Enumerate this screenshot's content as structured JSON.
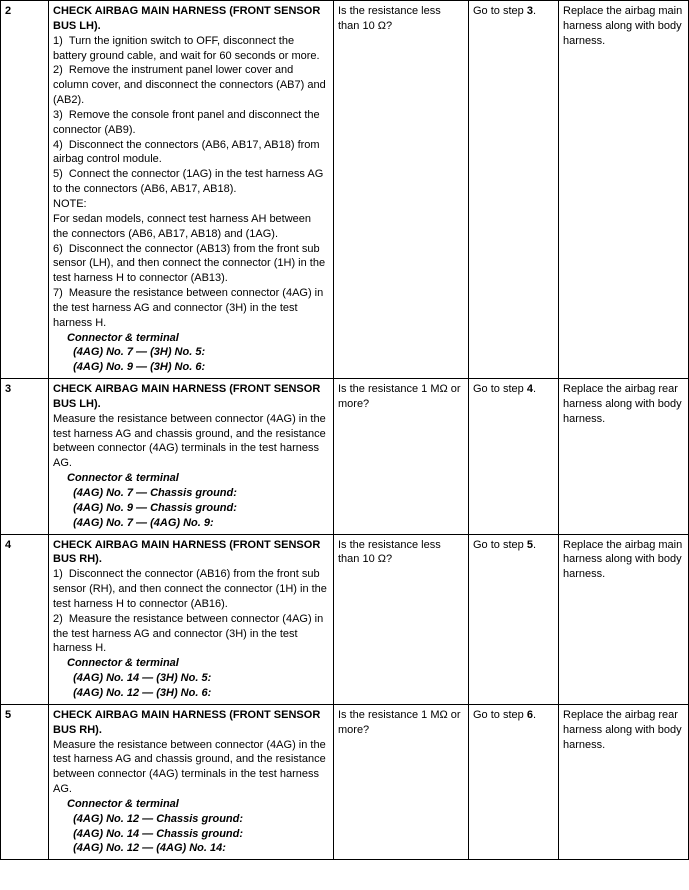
{
  "rows": [
    {
      "step": "2",
      "title": "CHECK AIRBAG MAIN HARNESS (FRONT SENSOR BUS LH).",
      "body_html": "1)&nbsp;&nbsp;Turn the ignition switch to OFF, disconnect the battery ground cable, and wait for 60 seconds or more.<br>2)&nbsp;&nbsp;Remove the instrument panel lower cover and column cover, and disconnect the connectors (AB7) and (AB2).<br>3)&nbsp;&nbsp;Remove the console front panel and disconnect the connector (AB9).<br>4)&nbsp;&nbsp;Disconnect the connectors (AB6, AB17, AB18) from airbag control module.<br>5)&nbsp;&nbsp;Connect the connector (1AG) in the test harness AG to the connectors (AB6, AB17, AB18).<br>NOTE:<br>For sedan models, connect test harness AH between the connectors (AB6, AB17, AB18) and (1AG).<br>6)&nbsp;&nbsp;Disconnect the connector (AB13) from the front sub sensor (LH), and then connect the connector (1H) in the test harness H to connector (AB13).<br>7)&nbsp;&nbsp;Measure the resistance between connector (4AG) in the test harness AG and connector (3H) in the test harness H.<br><span class=\"indent1\"><span class=\"bold\">Connector &amp; terminal</span></span><span class=\"indent1\"><span class=\"bold\">&nbsp;&nbsp;(4AG) No. 7 — (3H) No. 5:</span></span><span class=\"indent1\"><span class=\"bold\">&nbsp;&nbsp;(4AG) No. 9 — (3H) No. 6:</span></span>",
      "check": "Is the resistance less than 10 Ω?",
      "yes_html": "Go to step <b>3</b>.",
      "no": "Replace the airbag main harness along with body harness."
    },
    {
      "step": "3",
      "title": "CHECK AIRBAG MAIN HARNESS (FRONT SENSOR BUS LH).",
      "body_html": "Measure the resistance between connector (4AG) in the test harness AG and chassis ground, and the resistance between connector (4AG) terminals in the test harness AG.<br><span class=\"indent1\"><span class=\"bold\">Connector &amp; terminal</span></span><span class=\"indent1\"><span class=\"bold\">&nbsp;&nbsp;(4AG) No. 7 — Chassis ground:</span></span><span class=\"indent1\"><span class=\"bold\">&nbsp;&nbsp;(4AG) No. 9 — Chassis ground:</span></span><span class=\"indent1\"><span class=\"bold\">&nbsp;&nbsp;(4AG) No. 7 — (4AG) No. 9:</span></span>",
      "check": "Is the resistance 1 MΩ or more?",
      "yes_html": "Go to step <b>4</b>.",
      "no": "Replace the airbag rear harness along with body harness."
    },
    {
      "step": "4",
      "title": "CHECK AIRBAG MAIN HARNESS (FRONT SENSOR BUS RH).",
      "body_html": "1)&nbsp;&nbsp;Disconnect the connector (AB16) from the front sub sensor (RH), and then connect the connector (1H) in the test harness H to connector (AB16).<br>2)&nbsp;&nbsp;Measure the resistance between connector (4AG) in the test harness AG and connector (3H) in the test harness H.<br><span class=\"indent1\"><span class=\"bold\">Connector &amp; terminal</span></span><span class=\"indent1\"><span class=\"bold\">&nbsp;&nbsp;(4AG) No. 14 — (3H) No. 5:</span></span><span class=\"indent1\"><span class=\"bold\">&nbsp;&nbsp;(4AG) No. 12 — (3H) No. 6:</span></span>",
      "check": "Is the resistance less than 10 Ω?",
      "yes_html": "Go to step <b>5</b>.",
      "no": "Replace the airbag main harness along with body harness."
    },
    {
      "step": "5",
      "title": "CHECK AIRBAG MAIN HARNESS (FRONT SENSOR BUS RH).",
      "body_html": "Measure the resistance between connector (4AG) in the test harness AG and chassis ground, and the resistance between connector (4AG) terminals in the test harness AG.<br><span class=\"indent1\"><span class=\"bold\">Connector &amp; terminal</span></span><span class=\"indent1\"><span class=\"bold\">&nbsp;&nbsp;(4AG) No. 12 — Chassis ground:</span></span><span class=\"indent1\"><span class=\"bold\">&nbsp;&nbsp;(4AG) No. 14 — Chassis ground:</span></span><span class=\"indent1\"><span class=\"bold\">&nbsp;&nbsp;(4AG) No. 12 — (4AG) No. 14:</span></span>",
      "check": "Is the resistance 1 MΩ or more?",
      "yes_html": "Go to step <b>6</b>.",
      "no": "Replace the airbag rear harness along with body harness."
    }
  ]
}
